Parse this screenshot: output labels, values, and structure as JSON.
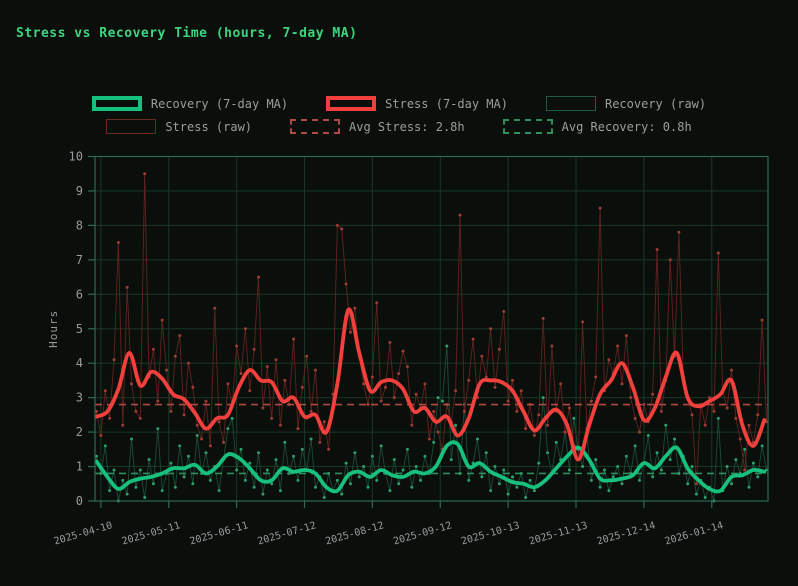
{
  "title": "Stress vs Recovery Time (hours, 7-day MA)",
  "legend": {
    "items": [
      {
        "label": "Recovery (7-day MA)",
        "swatch": "ma-green"
      },
      {
        "label": "Stress (7-day MA)",
        "swatch": "ma-red"
      },
      {
        "label": "Recovery (raw)",
        "swatch": "raw-green"
      },
      {
        "label": "Stress (raw)",
        "swatch": "raw-red"
      },
      {
        "label": "Avg Stress: 2.8h",
        "swatch": "dash-red"
      },
      {
        "label": "Avg Recovery: 0.8h",
        "swatch": "dash-green"
      }
    ]
  },
  "colors": {
    "background": "#0b0f0c",
    "title": "#3dd47e",
    "text": "#9a9a9a",
    "grid": "#173823",
    "spine": "#2d6a4f",
    "recovery_ma": "#17c07c",
    "stress_ma": "#f2413d",
    "recovery_raw": "#1c5038",
    "recovery_raw_marker": "#2c9e68",
    "stress_raw": "#672420",
    "stress_raw_marker": "#9c3c34",
    "avg_stress": "#b04a42",
    "avg_recovery": "#2f8f5f"
  },
  "chart_data": {
    "type": "line",
    "title": "Stress vs Recovery Time (hours, 7-day MA)",
    "xlabel": "",
    "ylabel": "Hours",
    "ylim": [
      0,
      10
    ],
    "grid": true,
    "legend_position": "top",
    "y_ticks": [
      0,
      1,
      2,
      3,
      4,
      5,
      6,
      7,
      8,
      9,
      10
    ],
    "x_ticks": [
      {
        "label": "2025-04-10",
        "day": 2
      },
      {
        "label": "2025-05-11",
        "day": 33
      },
      {
        "label": "2025-06-11",
        "day": 64
      },
      {
        "label": "2025-07-12",
        "day": 95
      },
      {
        "label": "2025-08-12",
        "day": 126
      },
      {
        "label": "2025-09-12",
        "day": 157
      },
      {
        "label": "2025-10-13",
        "day": 188
      },
      {
        "label": "2025-11-13",
        "day": 219
      },
      {
        "label": "2025-12-14",
        "day": 250
      },
      {
        "label": "2026-01-14",
        "day": 281
      }
    ],
    "total_days": 306,
    "series": [
      {
        "name": "Recovery (raw)",
        "kind": "raw",
        "color": "#1c5038",
        "marker_color": "#2c9e68",
        "line_width": 0.9,
        "marker_radius": 1.5,
        "start_day": 0,
        "step_days": 2,
        "values": [
          1.3,
          0.8,
          1.6,
          0.3,
          0.9,
          0.0,
          0.6,
          0.2,
          1.8,
          0.4,
          0.9,
          0.1,
          1.2,
          0.5,
          2.1,
          0.3,
          0.8,
          1.1,
          0.4,
          1.6,
          0.7,
          1.3,
          0.5,
          1.9,
          0.8,
          1.4,
          0.6,
          1.0,
          0.3,
          1.2,
          2.1,
          2.4,
          0.9,
          1.5,
          0.6,
          1.1,
          0.4,
          1.4,
          0.2,
          0.9,
          0.5,
          1.2,
          0.3,
          1.7,
          0.8,
          1.3,
          0.6,
          1.5,
          0.9,
          1.8,
          0.4,
          0.7,
          0.1,
          0.8,
          0.3,
          0.6,
          0.2,
          1.1,
          0.5,
          1.4,
          0.7,
          1.0,
          0.4,
          1.3,
          0.6,
          1.6,
          0.8,
          0.3,
          1.2,
          0.5,
          0.9,
          1.5,
          0.4,
          1.0,
          0.6,
          1.3,
          0.8,
          1.7,
          3.0,
          2.9,
          4.5,
          1.2,
          2.2,
          0.8,
          2.8,
          0.6,
          1.1,
          1.8,
          0.7,
          1.4,
          0.3,
          1.0,
          0.5,
          0.9,
          0.2,
          0.7,
          0.4,
          0.8,
          0.1,
          0.6,
          0.3,
          1.1,
          3.0,
          1.4,
          0.8,
          1.7,
          1.2,
          2.0,
          0.9,
          2.4,
          1.5,
          1.0,
          1.9,
          0.6,
          1.2,
          0.4,
          0.9,
          0.3,
          0.7,
          1.0,
          0.5,
          1.3,
          0.8,
          1.6,
          0.6,
          1.1,
          1.9,
          0.7,
          1.4,
          0.9,
          2.2,
          1.2,
          1.8,
          0.8,
          1.3,
          0.5,
          1.0,
          0.2,
          0.6,
          0.1,
          0.4,
          0.0,
          2.4,
          0.3,
          1.0,
          0.5,
          1.2,
          0.8,
          1.5,
          0.4,
          1.1,
          0.7,
          1.6,
          0.9
        ]
      },
      {
        "name": "Stress (raw)",
        "kind": "raw",
        "color": "#672420",
        "marker_color": "#9c3c34",
        "line_width": 0.9,
        "marker_radius": 1.5,
        "start_day": 0,
        "step_days": 2,
        "values": [
          2.6,
          1.9,
          3.2,
          2.4,
          4.1,
          7.5,
          2.2,
          6.2,
          3.4,
          2.6,
          2.4,
          9.5,
          3.6,
          4.4,
          2.9,
          5.25,
          3.8,
          2.6,
          4.2,
          4.8,
          2.5,
          4.0,
          3.3,
          2.2,
          1.8,
          2.9,
          1.6,
          5.6,
          2.3,
          1.7,
          3.4,
          2.8,
          4.5,
          3.7,
          5.0,
          3.2,
          4.4,
          6.5,
          2.7,
          3.9,
          2.4,
          4.1,
          2.2,
          3.5,
          2.8,
          4.7,
          2.1,
          3.3,
          4.2,
          2.6,
          3.8,
          1.7,
          2.3,
          1.5,
          3.1,
          8.0,
          7.9,
          6.3,
          4.9,
          5.6,
          4.2,
          3.4,
          2.8,
          3.6,
          5.75,
          2.9,
          3.3,
          4.6,
          3.0,
          3.7,
          4.35,
          3.9,
          2.2,
          3.1,
          2.7,
          3.4,
          1.8,
          2.6,
          2.0,
          1.5,
          2.8,
          2.3,
          3.2,
          8.3,
          2.6,
          3.5,
          4.7,
          3.0,
          4.2,
          3.6,
          5.0,
          3.3,
          4.4,
          5.5,
          2.9,
          3.5,
          2.6,
          3.2,
          2.1,
          2.8,
          1.9,
          2.5,
          5.3,
          2.2,
          4.5,
          2.6,
          3.4,
          2.0,
          2.7,
          1.6,
          1.2,
          5.2,
          2.1,
          2.9,
          3.6,
          8.5,
          3.2,
          4.1,
          3.7,
          4.5,
          3.4,
          4.8,
          3.0,
          2.4,
          2.0,
          2.8,
          2.3,
          3.1,
          7.3,
          2.6,
          3.5,
          7.0,
          4.2,
          7.8,
          3.6,
          3.0,
          2.5,
          0.5,
          2.8,
          2.2,
          3.0,
          2.6,
          7.2,
          3.2,
          2.7,
          3.8,
          2.4,
          1.8,
          0.9,
          2.2,
          1.7,
          2.5,
          5.25,
          2.3
        ]
      },
      {
        "name": "Recovery (7-day MA)",
        "kind": "ma",
        "color": "#17c07c",
        "line_width": 3.8,
        "start_day": 0,
        "step_days": 5,
        "values": [
          1.15,
          0.7,
          0.35,
          0.55,
          0.65,
          0.7,
          0.8,
          0.95,
          0.95,
          1.05,
          0.8,
          1.0,
          1.35,
          1.25,
          0.95,
          0.6,
          0.6,
          0.95,
          0.85,
          0.9,
          0.8,
          0.4,
          0.3,
          0.75,
          0.85,
          0.7,
          0.9,
          0.75,
          0.7,
          0.85,
          0.8,
          1.0,
          1.6,
          1.65,
          1.0,
          1.1,
          0.85,
          0.7,
          0.55,
          0.5,
          0.4,
          0.6,
          0.95,
          1.3,
          1.55,
          1.2,
          0.65,
          0.6,
          0.65,
          0.75,
          1.1,
          0.95,
          1.3,
          1.55,
          0.95,
          0.6,
          0.35,
          0.3,
          0.7,
          0.75,
          0.9,
          0.85
        ]
      },
      {
        "name": "Stress (7-day MA)",
        "kind": "ma",
        "color": "#f2413d",
        "line_width": 3.8,
        "start_day": 0,
        "step_days": 5,
        "values": [
          2.45,
          2.6,
          3.25,
          4.3,
          3.35,
          3.75,
          3.55,
          3.1,
          2.95,
          2.55,
          2.1,
          2.4,
          2.5,
          3.3,
          3.8,
          3.5,
          3.45,
          2.9,
          3.0,
          2.45,
          2.5,
          2.0,
          3.4,
          5.55,
          4.3,
          3.2,
          3.45,
          3.5,
          3.25,
          2.6,
          2.7,
          2.3,
          2.45,
          1.9,
          2.4,
          3.4,
          3.5,
          3.45,
          3.2,
          2.6,
          2.05,
          2.4,
          2.65,
          2.2,
          1.2,
          2.2,
          3.1,
          3.5,
          4.0,
          3.3,
          2.35,
          2.7,
          3.6,
          4.3,
          3.0,
          2.75,
          2.9,
          3.1,
          3.5,
          2.2,
          1.6,
          2.35
        ]
      }
    ],
    "avg_lines": [
      {
        "name": "Avg Stress",
        "value": 2.8,
        "label": "Avg Stress: 2.8h",
        "color": "#b04a42"
      },
      {
        "name": "Avg Recovery",
        "value": 0.8,
        "label": "Avg Recovery: 0.8h",
        "color": "#2f8f5f"
      }
    ]
  }
}
